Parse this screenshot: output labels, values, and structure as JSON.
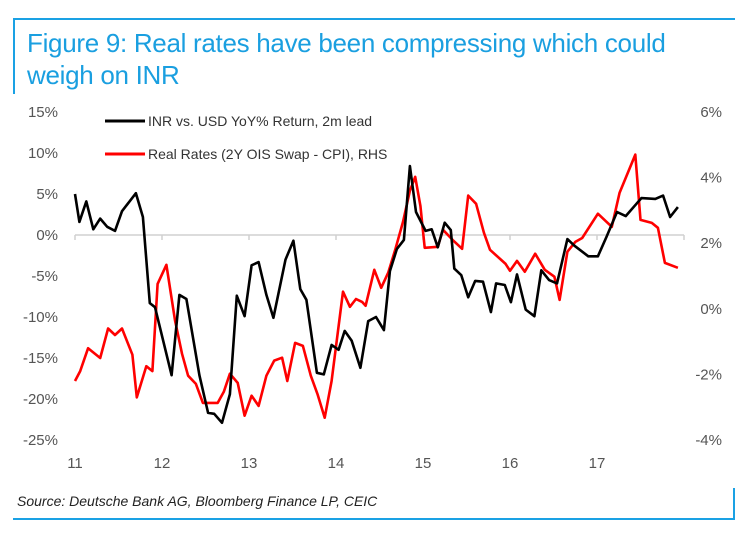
{
  "figure": {
    "title": "Figure 9: Real rates have been compressing which could weigh on INR",
    "source": "Source: Deutsche Bank AG, Bloomberg Finance LP, CEIC",
    "accent_color": "#1aa1e4"
  },
  "chart_data": {
    "type": "line",
    "title": "Figure 9: Real rates have been compressing which could weigh on INR",
    "xlabel": "",
    "ylabel": "",
    "y2label": "",
    "x_ticks": [
      "11",
      "12",
      "13",
      "14",
      "15",
      "16",
      "17"
    ],
    "x_tick_values": [
      11,
      12,
      13,
      14,
      15,
      16,
      17
    ],
    "xlim": [
      11,
      18
    ],
    "ylim": [
      -25,
      15
    ],
    "y_ticks": [
      "15%",
      "10%",
      "5%",
      "0%",
      "-5%",
      "-10%",
      "-15%",
      "-20%",
      "-25%"
    ],
    "y_tick_values": [
      15,
      10,
      5,
      0,
      -5,
      -10,
      -15,
      -20,
      -25
    ],
    "y2lim": [
      -4,
      6
    ],
    "y2_ticks": [
      "6%",
      "4%",
      "2%",
      "0%",
      "-2%",
      "-4%"
    ],
    "y2_tick_values": [
      6,
      4,
      2,
      0,
      -2,
      -4
    ],
    "grid": false,
    "legend_position": "top-left",
    "series": [
      {
        "name": "INR vs. USD YoY% Return, 2m lead",
        "axis": "left",
        "color": "#000000",
        "x": [
          11.0,
          11.05,
          11.13,
          11.21,
          11.29,
          11.37,
          11.46,
          11.54,
          11.7,
          11.78,
          11.86,
          11.92,
          12.11,
          12.2,
          12.28,
          12.43,
          12.53,
          12.6,
          12.69,
          12.78,
          12.86,
          12.95,
          13.03,
          13.11,
          13.2,
          13.28,
          13.42,
          13.51,
          13.59,
          13.66,
          13.78,
          13.86,
          13.95,
          14.03,
          14.1,
          14.18,
          14.28,
          14.37,
          14.46,
          14.55,
          14.62,
          14.7,
          14.78,
          14.85,
          14.92,
          15.03,
          15.1,
          15.17,
          15.25,
          15.32,
          15.36,
          15.44,
          15.52,
          15.6,
          15.69,
          15.78,
          15.84,
          15.94,
          16.01,
          16.08,
          16.18,
          16.28,
          16.36,
          16.45,
          16.54,
          16.66,
          16.74,
          16.9,
          17.01,
          17.11,
          17.23,
          17.33,
          17.51,
          17.67,
          17.76,
          17.84,
          17.93
        ],
        "values": [
          5.0,
          1.6,
          4.1,
          0.7,
          2.0,
          1.0,
          0.5,
          2.9,
          5.1,
          2.2,
          -8.3,
          -8.8,
          -17.1,
          -7.3,
          -7.8,
          -17.1,
          -21.7,
          -21.8,
          -22.9,
          -19.4,
          -7.4,
          -9.9,
          -3.7,
          -3.3,
          -7.3,
          -10.1,
          -3.0,
          -0.7,
          -6.6,
          -7.9,
          -16.8,
          -17.0,
          -13.4,
          -14.0,
          -11.7,
          -12.9,
          -16.2,
          -10.5,
          -10.0,
          -11.6,
          -4.4,
          -1.7,
          -0.6,
          8.4,
          2.8,
          0.5,
          0.7,
          -1.5,
          1.5,
          0.6,
          -4.1,
          -4.9,
          -7.6,
          -5.6,
          -5.7,
          -9.4,
          -5.9,
          -6.1,
          -8.2,
          -4.8,
          -9.1,
          -9.9,
          -4.3,
          -5.5,
          -5.9,
          -0.5,
          -1.3,
          -2.6,
          -2.6,
          -0.2,
          2.8,
          2.3,
          4.5,
          4.4,
          4.8,
          2.2,
          3.4
        ]
      },
      {
        "name": "Real Rates (2Y OIS Swap - CPI), RHS",
        "axis": "right",
        "color": "#ff0000",
        "x": [
          11.0,
          11.06,
          11.15,
          11.29,
          11.38,
          11.46,
          11.54,
          11.66,
          11.71,
          11.82,
          11.89,
          11.95,
          12.05,
          12.15,
          12.23,
          12.3,
          12.39,
          12.47,
          12.57,
          12.64,
          12.71,
          12.78,
          12.87,
          12.95,
          13.03,
          13.11,
          13.2,
          13.29,
          13.38,
          13.44,
          13.53,
          13.62,
          13.71,
          13.79,
          13.87,
          13.95,
          14.08,
          14.16,
          14.23,
          14.3,
          14.34,
          14.44,
          14.52,
          14.6,
          14.68,
          14.77,
          14.85,
          14.91,
          14.97,
          15.02,
          15.17,
          15.23,
          15.34,
          15.45,
          15.52,
          15.61,
          15.7,
          15.77,
          15.95,
          16.0,
          16.08,
          16.17,
          16.29,
          16.4,
          16.51,
          16.57,
          16.66,
          16.75,
          16.83,
          17.01,
          17.17,
          17.26,
          17.44,
          17.5,
          17.63,
          17.7,
          17.78,
          17.93
        ],
        "values": [
          -2.2,
          -1.9,
          -1.2,
          -1.5,
          -0.6,
          -0.8,
          -0.6,
          -1.4,
          -2.7,
          -1.75,
          -1.9,
          0.76,
          1.34,
          -0.37,
          -1.37,
          -2.04,
          -2.29,
          -2.87,
          -2.87,
          -2.87,
          -2.53,
          -1.98,
          -2.26,
          -3.26,
          -2.65,
          -2.96,
          -2.04,
          -1.58,
          -1.49,
          -2.2,
          -1.04,
          -1.13,
          -2.04,
          -2.62,
          -3.32,
          -2.2,
          0.52,
          0.06,
          0.3,
          0.21,
          0.09,
          1.19,
          0.64,
          1.1,
          1.8,
          2.65,
          3.6,
          4.02,
          3.14,
          1.86,
          1.89,
          2.41,
          2.1,
          1.83,
          3.45,
          3.2,
          2.32,
          1.8,
          1.37,
          1.16,
          1.46,
          1.13,
          1.68,
          1.19,
          0.98,
          0.27,
          1.74,
          2.04,
          2.16,
          2.9,
          2.5,
          3.54,
          4.7,
          2.71,
          2.62,
          2.47,
          1.4,
          1.25
        ]
      }
    ]
  }
}
